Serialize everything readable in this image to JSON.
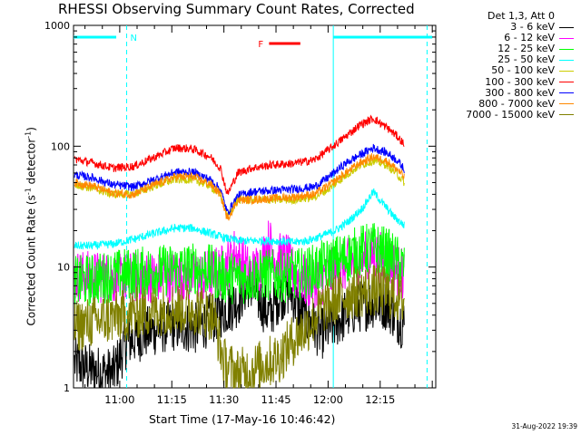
{
  "chart_data": {
    "type": "line",
    "title": "RHESSI Observing Summary Count Rates, Corrected",
    "xlabel": "Start Time (17-May-16 10:46:42)",
    "ylabel_parts": {
      "main": "Corrected Count Rate (s",
      "sup1": "-1",
      "mid": " detector",
      "sup2": "-1",
      "end": ")"
    },
    "yscale": "log",
    "ylim": [
      1,
      1000
    ],
    "y_ticks": [
      "1",
      "10",
      "100",
      "1000"
    ],
    "xlim_minutes": [
      46.7,
      151.0
    ],
    "x_ticks": [
      {
        "label": "11:00",
        "min": 60
      },
      {
        "label": "11:15",
        "min": 75
      },
      {
        "label": "11:30",
        "min": 90
      },
      {
        "label": "11:45",
        "min": 105
      },
      {
        "label": "12:00",
        "min": 120
      },
      {
        "label": "12:15",
        "min": 135
      }
    ],
    "grid": false,
    "legend_position": "right",
    "legend_header": "Det 1,3, Att 0",
    "series": [
      {
        "name": "3 - 6 keV",
        "color": "#000000",
        "points": [
          [
            47,
            1.6
          ],
          [
            52,
            1.4
          ],
          [
            58,
            1.3
          ],
          [
            62,
            2.4
          ],
          [
            68,
            2.9
          ],
          [
            75,
            3.3
          ],
          [
            82,
            3.1
          ],
          [
            88,
            4.0
          ],
          [
            94,
            5.2
          ],
          [
            97,
            7.5
          ],
          [
            100,
            5.5
          ],
          [
            103,
            4.0
          ],
          [
            106,
            5.8
          ],
          [
            109,
            6.5
          ],
          [
            112,
            4.2
          ],
          [
            118,
            2.8
          ],
          [
            124,
            3.8
          ],
          [
            128,
            4.6
          ],
          [
            133,
            5.1
          ],
          [
            137,
            4.9
          ],
          [
            140,
            3.8
          ],
          [
            142,
            3.3
          ]
        ]
      },
      {
        "name": "6 - 12 keV",
        "color": "#ff00ff",
        "points": [
          [
            47,
            8.5
          ],
          [
            52,
            8.3
          ],
          [
            60,
            8.0
          ],
          [
            68,
            8.2
          ],
          [
            76,
            8.4
          ],
          [
            84,
            8.3
          ],
          [
            90,
            9.5
          ],
          [
            93,
            13
          ],
          [
            95,
            11
          ],
          [
            98,
            8.5
          ],
          [
            101,
            11
          ],
          [
            103,
            16
          ],
          [
            105,
            11.5
          ],
          [
            108,
            12
          ],
          [
            110,
            9
          ],
          [
            114,
            7.4
          ],
          [
            118,
            7.8
          ],
          [
            123,
            9.5
          ],
          [
            128,
            11.5
          ],
          [
            133,
            12.5
          ],
          [
            137,
            11.5
          ],
          [
            140,
            9.5
          ],
          [
            142,
            8.5
          ]
        ]
      },
      {
        "name": "12 - 25 keV",
        "color": "#00ff00",
        "points": [
          [
            47,
            7.5
          ],
          [
            52,
            7.8
          ],
          [
            58,
            8.5
          ],
          [
            64,
            8.9
          ],
          [
            70,
            9.2
          ],
          [
            76,
            9.6
          ],
          [
            82,
            9.7
          ],
          [
            86,
            9.4
          ],
          [
            90,
            8.2
          ],
          [
            96,
            8.1
          ],
          [
            102,
            8.6
          ],
          [
            108,
            8.4
          ],
          [
            114,
            9.0
          ],
          [
            120,
            10.5
          ],
          [
            125,
            12
          ],
          [
            129,
            13.5
          ],
          [
            133,
            14.5
          ],
          [
            137,
            13.0
          ],
          [
            140,
            11
          ],
          [
            142,
            9.5
          ]
        ]
      },
      {
        "name": "25 - 50 keV",
        "color": "#00ffff",
        "points": [
          [
            47,
            15
          ],
          [
            52,
            15
          ],
          [
            58,
            15.5
          ],
          [
            64,
            17
          ],
          [
            70,
            19
          ],
          [
            76,
            21
          ],
          [
            81,
            21
          ],
          [
            86,
            19
          ],
          [
            90,
            17.5
          ],
          [
            94,
            16.5
          ],
          [
            98,
            16.5
          ],
          [
            104,
            16.5
          ],
          [
            110,
            16
          ],
          [
            114,
            16.5
          ],
          [
            118,
            18
          ],
          [
            122,
            20
          ],
          [
            126,
            24
          ],
          [
            130,
            31
          ],
          [
            133,
            42
          ],
          [
            136,
            33
          ],
          [
            139,
            26
          ],
          [
            142,
            22
          ]
        ]
      },
      {
        "name": "50 - 100 keV",
        "color": "#cccc00",
        "points": [
          [
            47,
            48
          ],
          [
            52,
            45
          ],
          [
            58,
            40
          ],
          [
            64,
            40
          ],
          [
            70,
            47
          ],
          [
            76,
            53
          ],
          [
            81,
            53
          ],
          [
            86,
            47
          ],
          [
            89,
            39
          ],
          [
            91,
            26
          ],
          [
            94,
            36
          ],
          [
            98,
            36
          ],
          [
            104,
            36
          ],
          [
            110,
            36
          ],
          [
            116,
            38
          ],
          [
            120,
            44
          ],
          [
            125,
            57
          ],
          [
            129,
            69
          ],
          [
            133,
            76
          ],
          [
            137,
            70
          ],
          [
            140,
            58
          ],
          [
            142,
            50
          ]
        ]
      },
      {
        "name": "100 - 300 keV",
        "color": "#ff0000",
        "points": [
          [
            47,
            78
          ],
          [
            52,
            73
          ],
          [
            58,
            66
          ],
          [
            64,
            68
          ],
          [
            70,
            81
          ],
          [
            76,
            97
          ],
          [
            81,
            95
          ],
          [
            86,
            82
          ],
          [
            89,
            66
          ],
          [
            91,
            40
          ],
          [
            94,
            60
          ],
          [
            98,
            66
          ],
          [
            104,
            70
          ],
          [
            110,
            72
          ],
          [
            116,
            77
          ],
          [
            120,
            93
          ],
          [
            125,
            120
          ],
          [
            129,
            149
          ],
          [
            133,
            170
          ],
          [
            137,
            142
          ],
          [
            140,
            120
          ],
          [
            142,
            103
          ]
        ]
      },
      {
        "name": "300 - 800 keV",
        "color": "#0000ff",
        "points": [
          [
            47,
            58
          ],
          [
            52,
            55
          ],
          [
            58,
            48
          ],
          [
            64,
            46
          ],
          [
            70,
            53
          ],
          [
            76,
            61
          ],
          [
            81,
            61
          ],
          [
            86,
            53
          ],
          [
            89,
            44
          ],
          [
            91,
            28
          ],
          [
            94,
            39
          ],
          [
            98,
            42
          ],
          [
            104,
            43
          ],
          [
            110,
            44
          ],
          [
            116,
            46
          ],
          [
            120,
            55
          ],
          [
            125,
            72
          ],
          [
            129,
            84
          ],
          [
            133,
            97
          ],
          [
            137,
            88
          ],
          [
            140,
            76
          ],
          [
            142,
            64
          ]
        ]
      },
      {
        "name": "800 - 7000 keV",
        "color": "#ff8800",
        "points": [
          [
            47,
            50
          ],
          [
            52,
            47
          ],
          [
            58,
            41
          ],
          [
            64,
            40
          ],
          [
            70,
            48
          ],
          [
            76,
            56
          ],
          [
            81,
            56
          ],
          [
            86,
            49
          ],
          [
            89,
            40
          ],
          [
            91,
            25
          ],
          [
            94,
            36
          ],
          [
            98,
            36
          ],
          [
            104,
            37
          ],
          [
            110,
            38
          ],
          [
            116,
            40
          ],
          [
            120,
            47
          ],
          [
            125,
            60
          ],
          [
            129,
            72
          ],
          [
            133,
            82
          ],
          [
            137,
            75
          ],
          [
            140,
            64
          ],
          [
            142,
            55
          ]
        ]
      },
      {
        "name": "7000 - 15000 keV",
        "color": "#808000",
        "points": [
          [
            47,
            3.2
          ],
          [
            52,
            3.5
          ],
          [
            58,
            3.8
          ],
          [
            64,
            4.1
          ],
          [
            70,
            4.4
          ],
          [
            76,
            4.6
          ],
          [
            82,
            4.5
          ],
          [
            87,
            4.0
          ],
          [
            90,
            1.6
          ],
          [
            94,
            1.3
          ],
          [
            98,
            1.4
          ],
          [
            102,
            1.6
          ],
          [
            106,
            1.8
          ],
          [
            110,
            2.5
          ],
          [
            114,
            3.2
          ],
          [
            118,
            4.5
          ],
          [
            123,
            5.6
          ],
          [
            128,
            6.2
          ],
          [
            133,
            6.4
          ],
          [
            137,
            6.2
          ],
          [
            140,
            5.6
          ],
          [
            142,
            5.2
          ]
        ]
      }
    ],
    "annotations": {
      "night_label": "N",
      "flare_label": "F"
    }
  },
  "footer": {
    "timestamp": "31-Aug-2022 19:39"
  }
}
